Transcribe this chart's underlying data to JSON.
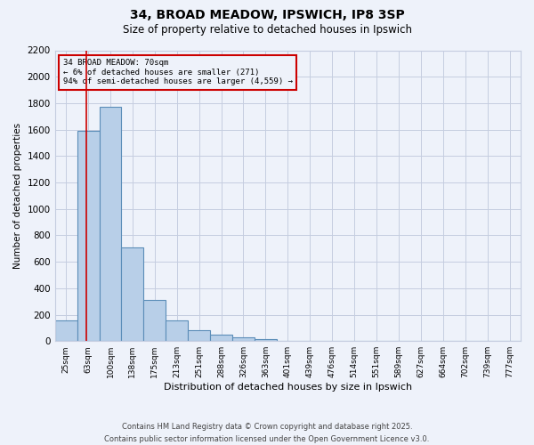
{
  "title1": "34, BROAD MEADOW, IPSWICH, IP8 3SP",
  "title2": "Size of property relative to detached houses in Ipswich",
  "xlabel": "Distribution of detached houses by size in Ipswich",
  "ylabel": "Number of detached properties",
  "categories": [
    "25sqm",
    "63sqm",
    "100sqm",
    "138sqm",
    "175sqm",
    "213sqm",
    "251sqm",
    "288sqm",
    "326sqm",
    "363sqm",
    "401sqm",
    "439sqm",
    "476sqm",
    "514sqm",
    "551sqm",
    "589sqm",
    "627sqm",
    "664sqm",
    "702sqm",
    "739sqm",
    "777sqm"
  ],
  "values": [
    155,
    1590,
    1775,
    710,
    310,
    155,
    80,
    50,
    25,
    15,
    0,
    0,
    0,
    0,
    0,
    0,
    0,
    0,
    0,
    0,
    0
  ],
  "bar_color": "#b8cfe8",
  "bar_edge_color": "#5b8db8",
  "vline_x": 0.9,
  "vline_color": "#cc0000",
  "annotation_title": "34 BROAD MEADOW: 70sqm",
  "annotation_line1": "← 6% of detached houses are smaller (271)",
  "annotation_line2": "94% of semi-detached houses are larger (4,559) →",
  "ylim": [
    0,
    2200
  ],
  "yticks": [
    0,
    200,
    400,
    600,
    800,
    1000,
    1200,
    1400,
    1600,
    1800,
    2000,
    2200
  ],
  "footer1": "Contains HM Land Registry data © Crown copyright and database right 2025.",
  "footer2": "Contains public sector information licensed under the Open Government Licence v3.0.",
  "bg_color": "#eef2fa",
  "grid_color": "#c5cde0"
}
